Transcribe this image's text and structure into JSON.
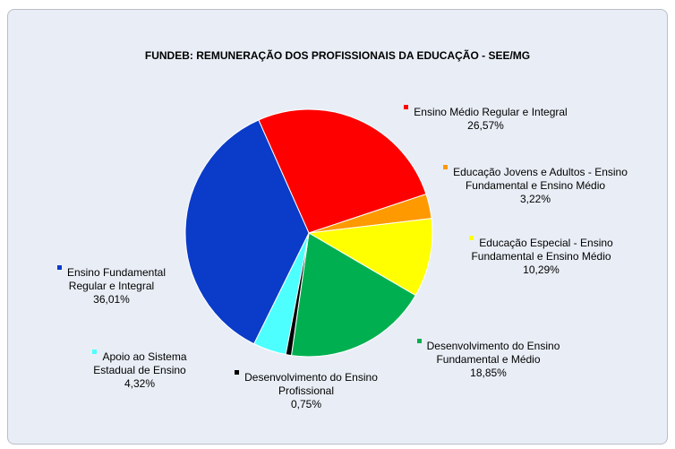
{
  "chart_data": {
    "type": "pie",
    "title": "FUNDEB: REMUNERAÇÃO DOS PROFISSIONAIS DA EDUCAÇÃO - SEE/MG",
    "categories": [
      "Ensino Médio Regular e Integral",
      "Educação Jovens e Adultos - Ensino Fundamental e Ensino Médio",
      "Educação Especial - Ensino Fundamental e Ensino Médio",
      "Desenvolvimento do Ensino Fundamental e Médio",
      "Desenvolvimento do Ensino Profissional",
      "Apoio ao Sistema Estadual de Ensino",
      "Ensino Fundamental Regular e Integral"
    ],
    "values": [
      26.57,
      3.22,
      10.29,
      18.85,
      0.75,
      4.32,
      36.01
    ],
    "value_labels": [
      "26,57%",
      "3,22%",
      "10,29%",
      "18,85%",
      "0,75%",
      "4,32%",
      "36,01%"
    ],
    "colors": [
      "#ff0000",
      "#ff9900",
      "#ffff00",
      "#00b050",
      "#000000",
      "#4dffff",
      "#0a3bc9"
    ]
  }
}
